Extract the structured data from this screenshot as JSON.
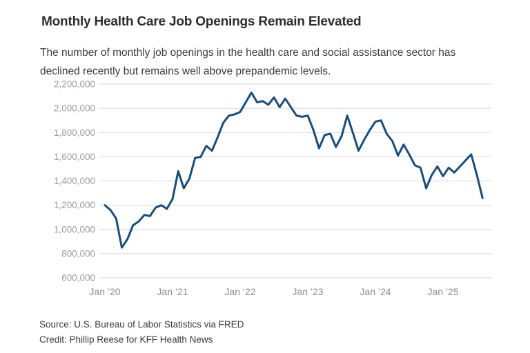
{
  "header": {
    "title": "Monthly Health Care Job Openings Remain Elevated",
    "subtitle": "The number of monthly job openings in the health care and social assistance sector has declined recently but remains well above prepandemic levels."
  },
  "footer": {
    "source": "Source: U.S. Bureau of Labor Statistics via FRED",
    "credit": "Credit: Phillip Reese for KFF Health News"
  },
  "chart_data": {
    "type": "line",
    "title": "Monthly Health Care Job Openings Remain Elevated",
    "ylabel": "",
    "xlabel": "",
    "ylim": [
      600000,
      2200000
    ],
    "grid": true,
    "legend": "none",
    "line_color": "#154d80",
    "grid_color": "#d8d8d8",
    "y_tick_color": "#9a9a9a",
    "x_tick_color": "#8d8d8d",
    "y_ticks": [
      {
        "value": 2200000,
        "label": "2,200,000"
      },
      {
        "value": 2000000,
        "label": "2,000,000"
      },
      {
        "value": 1800000,
        "label": "1,800,000"
      },
      {
        "value": 1600000,
        "label": "1,600,000"
      },
      {
        "value": 1400000,
        "label": "1,400,000"
      },
      {
        "value": 1200000,
        "label": "1,200,000"
      },
      {
        "value": 1000000,
        "label": "1,000,000"
      },
      {
        "value": 800000,
        "label": "800,000"
      },
      {
        "value": 600000,
        "label": "600,000"
      }
    ],
    "x_ticks": [
      {
        "month_index": 0,
        "label": "Jan ’20"
      },
      {
        "month_index": 12,
        "label": "Jan ’21"
      },
      {
        "month_index": 24,
        "label": "Jan ’22"
      },
      {
        "month_index": 36,
        "label": "Jan ’23"
      },
      {
        "month_index": 48,
        "label": "Jan ’24"
      },
      {
        "month_index": 60,
        "label": "Jan ’25"
      }
    ],
    "series": [
      {
        "name": "Monthly job openings, health care and social assistance",
        "frequency": "monthly",
        "start_month": "2020-01",
        "end_month": "2025-08",
        "values": [
          1200000,
          1160000,
          1090000,
          850000,
          920000,
          1035000,
          1065000,
          1120000,
          1110000,
          1180000,
          1200000,
          1170000,
          1250000,
          1480000,
          1340000,
          1420000,
          1590000,
          1600000,
          1690000,
          1650000,
          1760000,
          1880000,
          1940000,
          1950000,
          1970000,
          2050000,
          2130000,
          2050000,
          2060000,
          2030000,
          2090000,
          2010000,
          2080000,
          2010000,
          1940000,
          1930000,
          1940000,
          1820000,
          1670000,
          1780000,
          1790000,
          1680000,
          1770000,
          1940000,
          1800000,
          1650000,
          1740000,
          1820000,
          1890000,
          1900000,
          1790000,
          1730000,
          1610000,
          1700000,
          1620000,
          1530000,
          1510000,
          1340000,
          1450000,
          1520000,
          1440000,
          1510000,
          1470000,
          1520000,
          1570000,
          1620000,
          1450000,
          1260000
        ]
      }
    ]
  }
}
